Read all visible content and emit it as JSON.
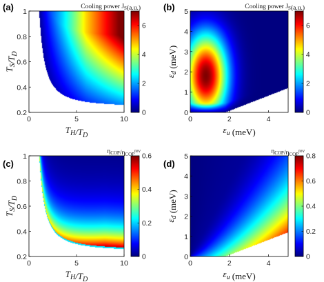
{
  "chart_data": [
    {
      "panel": "(a)",
      "type": "heatmap",
      "xlabel": "T_H/T_D",
      "ylabel": "T_S/T_D",
      "xlim": [
        0,
        10
      ],
      "ylim": [
        0.2,
        1
      ],
      "xticks": [
        "0",
        "5",
        "10"
      ],
      "yticks": [
        "0.2",
        "0.4",
        "0.6",
        "0.8",
        "1"
      ],
      "colorbar_title": "Cooling power J_S(a.u.)",
      "colorbar_range": [
        0,
        7
      ],
      "colorbar_ticks": [
        "0",
        "2",
        "4",
        "6"
      ],
      "colormap": "jet",
      "defined_region": "T_S/T_D above boundary curve from (1, 1) to (10, 0.24)",
      "maximum": {
        "x": 10,
        "y": 1,
        "value": 7
      }
    },
    {
      "panel": "(b)",
      "type": "heatmap",
      "xlabel": "ε_u (meV)",
      "ylabel": "ε_d (meV)",
      "xlim": [
        0,
        5
      ],
      "ylim": [
        0,
        5
      ],
      "xticks": [
        "0",
        "2",
        "4"
      ],
      "yticks": [
        "0",
        "1",
        "2",
        "3",
        "4",
        "5"
      ],
      "colorbar_title": "Cooling power J_S(a.u.)",
      "colorbar_range": [
        0,
        7
      ],
      "colorbar_ticks": [
        "0",
        "2",
        "4",
        "6"
      ],
      "colormap": "jet",
      "defined_region": "ε_d above line from (1.8, 0) to (5, 1.2)",
      "maximum": {
        "x": 0.8,
        "y": 1.8,
        "value": 7
      }
    },
    {
      "panel": "(c)",
      "type": "heatmap",
      "xlabel": "T_H/T_D",
      "ylabel": "T_S/T_D",
      "xlim": [
        0,
        10
      ],
      "ylim": [
        0.2,
        1
      ],
      "xticks": [
        "0",
        "5",
        "10"
      ],
      "yticks": [
        "0.2",
        "0.4",
        "0.6",
        "0.8",
        "1"
      ],
      "colorbar_title": "η_COP/η_COP^rev",
      "colorbar_range": [
        0,
        0.6
      ],
      "colorbar_ticks": [
        "0",
        "0.2",
        "0.4",
        "0.6"
      ],
      "colormap": "jet",
      "defined_region": "T_S/T_D above boundary curve from (1, 1) to (10, 0.24)",
      "maximum": {
        "x": 10,
        "y": 0.27,
        "value": 0.6
      }
    },
    {
      "panel": "(d)",
      "type": "heatmap",
      "xlabel": "ε_u (meV)",
      "ylabel": "ε_d (meV)",
      "xlim": [
        0,
        5
      ],
      "ylim": [
        0,
        5
      ],
      "xticks": [
        "0",
        "2",
        "4"
      ],
      "yticks": [
        "0",
        "1",
        "2",
        "3",
        "4",
        "5"
      ],
      "colorbar_title": "η_COP/η_COP^rev",
      "colorbar_range": [
        0,
        0.8
      ],
      "colorbar_ticks": [
        "0",
        "0.2",
        "0.4",
        "0.6",
        "0.8"
      ],
      "colormap": "jet",
      "defined_region": "ε_d above line from (1.8, 0) to (5, 1.2)",
      "maximum": {
        "x": 5,
        "y": 1.2,
        "value": 0.8
      }
    }
  ]
}
